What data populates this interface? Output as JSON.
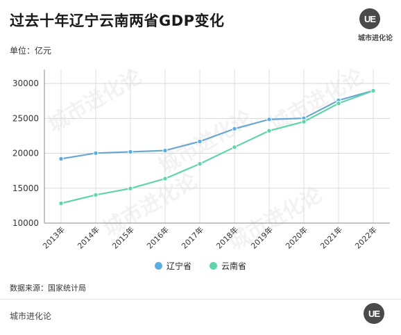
{
  "header": {
    "title": "过去十年辽宁云南两省GDP变化",
    "unit": "单位：亿元",
    "logo": "UE",
    "brand": "城市进化论"
  },
  "footer": {
    "source": "数据来源：国家统计局",
    "brand": "城市进化论",
    "logo": "UE"
  },
  "watermark": "城市进化论",
  "chart_data": {
    "type": "line",
    "title": "过去十年辽宁云南两省GDP变化",
    "ylabel": "单位：亿元",
    "xlabel": "",
    "ylim": [
      10000,
      32000
    ],
    "yticks": [
      10000,
      15000,
      20000,
      25000,
      30000
    ],
    "grid": true,
    "legend_position": "bottom-center",
    "x": [
      "2013年",
      "2014年",
      "2015年",
      "2016年",
      "2017年",
      "2018年",
      "2019年",
      "2020年",
      "2021年",
      "2022年"
    ],
    "series": [
      {
        "name": "辽宁省",
        "color": "#5aaee0",
        "line_color": "#6aa6d2",
        "values": [
          19210,
          20025,
          20210,
          20392,
          21693,
          23511,
          24855,
          25011,
          27584,
          28975
        ]
      },
      {
        "name": "云南省",
        "color": "#5fd4a8",
        "line_color": "#5fd4a8",
        "values": [
          12825,
          14042,
          14961,
          16369,
          18486,
          20881,
          23224,
          24522,
          27147,
          28954
        ]
      }
    ]
  }
}
